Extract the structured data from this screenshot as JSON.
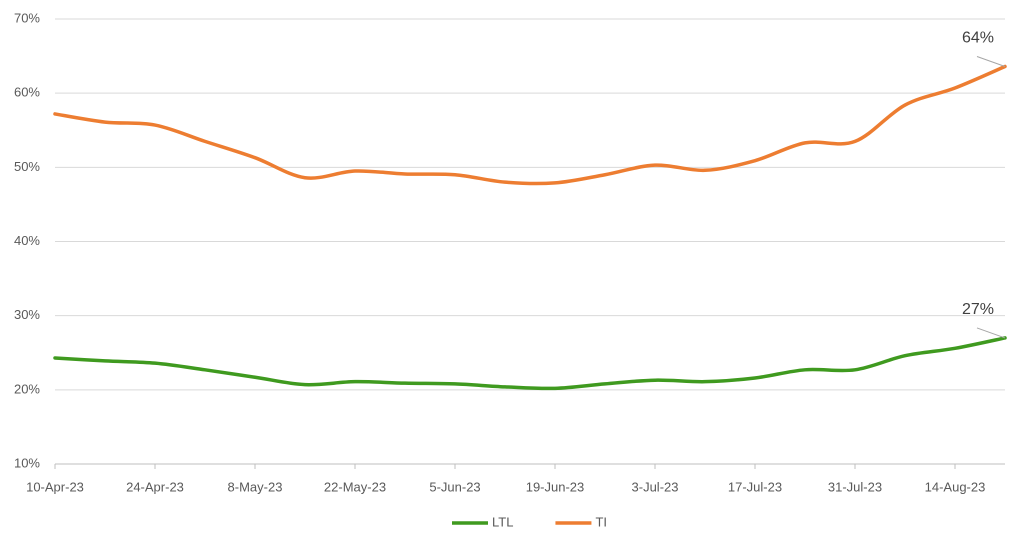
{
  "chart_data": {
    "type": "line",
    "categories": [
      "10-Apr-23",
      null,
      "24-Apr-23",
      null,
      "8-May-23",
      null,
      "22-May-23",
      null,
      "5-Jun-23",
      null,
      "19-Jun-23",
      null,
      "3-Jul-23",
      null,
      "17-Jul-23",
      null,
      "31-Jul-23",
      null,
      "14-Aug-23",
      null
    ],
    "series": [
      {
        "name": "LTL",
        "color": "#3f9a1f",
        "values": [
          24.3,
          23.9,
          23.6,
          22.7,
          21.7,
          20.7,
          21.1,
          20.9,
          20.8,
          20.4,
          20.2,
          20.8,
          21.3,
          21.1,
          21.6,
          22.7,
          22.7,
          24.6,
          25.6,
          27.0
        ],
        "value_labels": [
          null,
          null,
          null,
          null,
          null,
          null,
          null,
          null,
          null,
          null,
          null,
          null,
          null,
          null,
          null,
          null,
          null,
          null,
          null,
          "27%"
        ]
      },
      {
        "name": "TI",
        "color": "#ed7d31",
        "values": [
          57.2,
          56.1,
          55.7,
          53.5,
          51.3,
          48.6,
          49.5,
          49.1,
          49.0,
          48.0,
          47.9,
          49.0,
          50.3,
          49.6,
          50.9,
          53.3,
          53.5,
          58.4,
          60.7,
          63.6
        ],
        "value_labels": [
          null,
          null,
          null,
          null,
          null,
          null,
          null,
          null,
          null,
          null,
          null,
          null,
          null,
          null,
          null,
          null,
          null,
          null,
          null,
          "64%"
        ]
      }
    ],
    "ylim": [
      10,
      70
    ],
    "yticks": [
      {
        "value": 10,
        "label": "10%"
      },
      {
        "value": 20,
        "label": "20%"
      },
      {
        "value": 30,
        "label": "30%"
      },
      {
        "value": 40,
        "label": "40%"
      },
      {
        "value": 50,
        "label": "50%"
      },
      {
        "value": 60,
        "label": "60%"
      },
      {
        "value": 70,
        "label": "70%"
      }
    ],
    "grid": true,
    "legend": "bottom"
  }
}
